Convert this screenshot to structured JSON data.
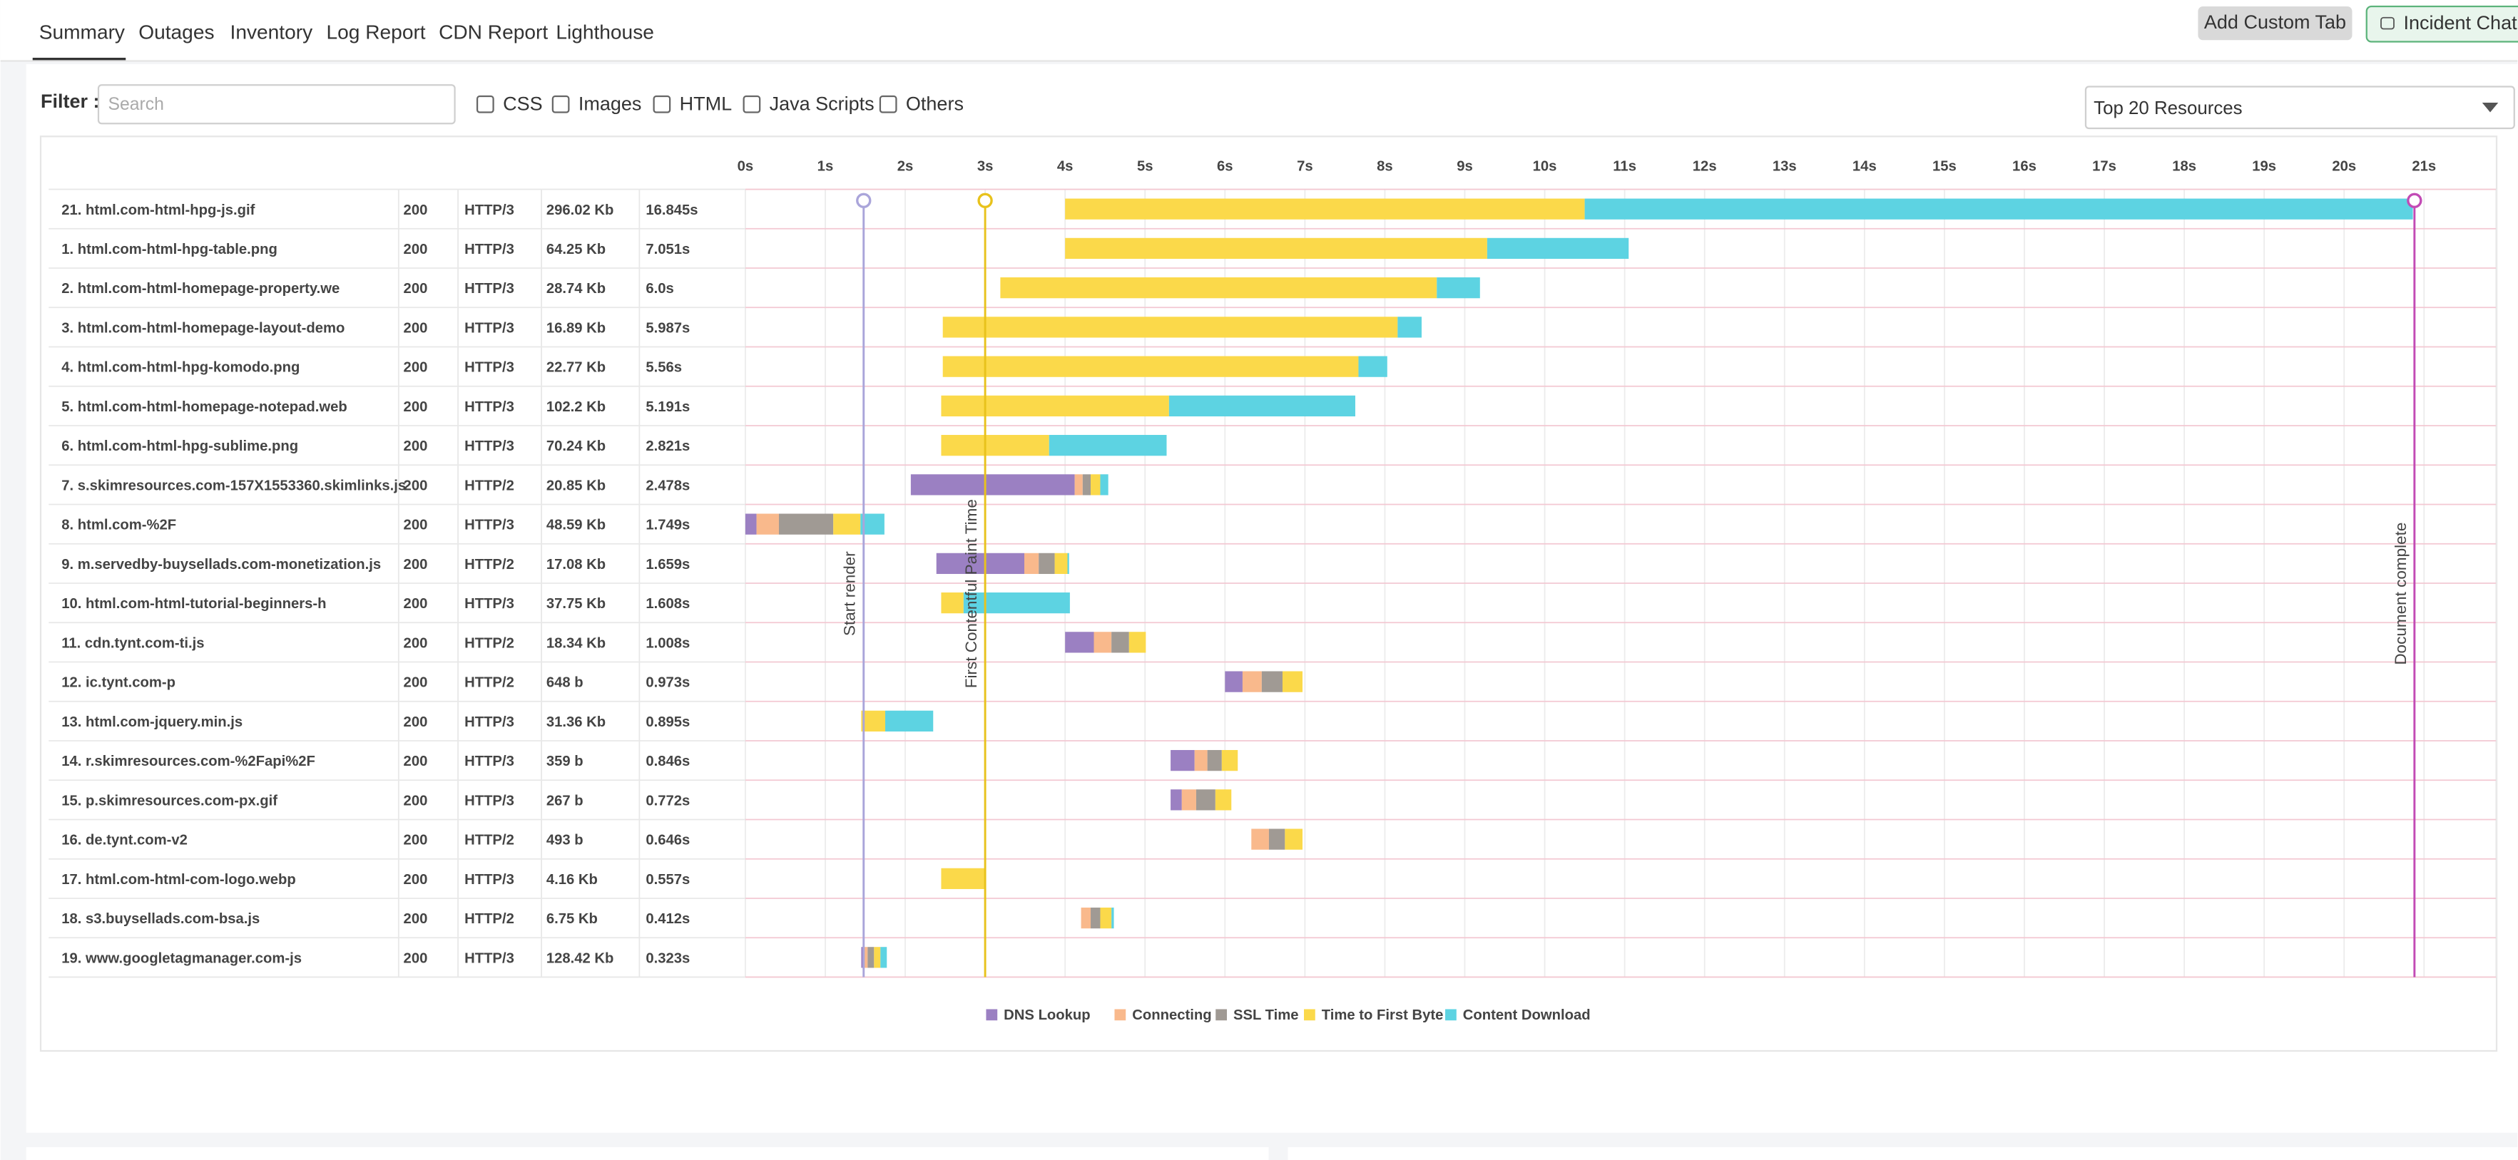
{
  "tabs": [
    "Summary",
    "Outages",
    "Inventory",
    "Log Report",
    "CDN Report",
    "Lighthouse"
  ],
  "buttons": [
    "Add Custom Tab",
    "Incident Chat"
  ],
  "filter": {
    "label": "Filter :",
    "placeholder": "Search",
    "options": [
      "CSS",
      "Images",
      "HTML",
      "Java Scripts",
      "Others"
    ],
    "dropdown": "Top 20 Resources"
  },
  "chart_data": {
    "type": "waterfall",
    "xlim": [
      0,
      21.9
    ],
    "xticks": [
      {
        "value": 0,
        "label": "0s"
      },
      {
        "value": 1,
        "label": "1s"
      },
      {
        "value": 2,
        "label": "2s"
      },
      {
        "value": 3,
        "label": "3s"
      },
      {
        "value": 4,
        "label": "4s"
      },
      {
        "value": 5,
        "label": "5s"
      },
      {
        "value": 6,
        "label": "6s"
      },
      {
        "value": 7,
        "label": "7s"
      },
      {
        "value": 8,
        "label": "8s"
      },
      {
        "value": 9,
        "label": "9s"
      },
      {
        "value": 10,
        "label": "10s"
      },
      {
        "value": 11,
        "label": "11s"
      },
      {
        "value": 12,
        "label": "12s"
      },
      {
        "value": 13,
        "label": "13s"
      },
      {
        "value": 14,
        "label": "14s"
      },
      {
        "value": 15,
        "label": "15s"
      },
      {
        "value": 16,
        "label": "16s"
      },
      {
        "value": 17,
        "label": "17s"
      },
      {
        "value": 18,
        "label": "18s"
      },
      {
        "value": 19,
        "label": "19s"
      },
      {
        "value": 20,
        "label": "20s"
      },
      {
        "value": 21,
        "label": "21s"
      }
    ],
    "grid": true,
    "rows": [
      {
        "name": "21. html.com-html-hpg-js.gif",
        "status": 200,
        "protocol": "HTTP/3",
        "size": "296.02 Kb",
        "time": "16.845s",
        "start": 4.0
      },
      {
        "name": "1. html.com-html-hpg-table.png",
        "status": 200,
        "protocol": "HTTP/3",
        "size": "64.25 Kb",
        "time": "7.051s",
        "start": 4.0
      },
      {
        "name": "2. html.com-html-homepage-property.we",
        "status": 200,
        "protocol": "HTTP/3",
        "size": "28.74 Kb",
        "time": "6.0s",
        "start": 3.19
      },
      {
        "name": "3. html.com-html-homepage-layout-demo",
        "status": 200,
        "protocol": "HTTP/3",
        "size": "16.89 Kb",
        "time": "5.987s",
        "start": 2.47
      },
      {
        "name": "4. html.com-html-hpg-komodo.png",
        "status": 200,
        "protocol": "HTTP/3",
        "size": "22.77 Kb",
        "time": "5.56s",
        "start": 2.47
      },
      {
        "name": "5. html.com-html-homepage-notepad.web",
        "status": 200,
        "protocol": "HTTP/3",
        "size": "102.2 Kb",
        "time": "5.191s",
        "start": 2.45
      },
      {
        "name": "6. html.com-html-hpg-sublime.png",
        "status": 200,
        "protocol": "HTTP/3",
        "size": "70.24 Kb",
        "time": "2.821s",
        "start": 2.45
      },
      {
        "name": "7. s.skimresources.com-157X1553360.skimlinks.js",
        "status": 200,
        "protocol": "HTTP/2",
        "size": "20.85 Kb",
        "time": "2.478s",
        "start": 2.07
      },
      {
        "name": "8. html.com-%2F",
        "status": 200,
        "protocol": "HTTP/3",
        "size": "48.59 Kb",
        "time": "1.749s",
        "start": 0.0
      },
      {
        "name": "9. m.servedby-buysellads.com-monetization.js",
        "status": 200,
        "protocol": "HTTP/2",
        "size": "17.08 Kb",
        "time": "1.659s",
        "start": 2.39
      },
      {
        "name": "10. html.com-html-tutorial-beginners-h",
        "status": 200,
        "protocol": "HTTP/3",
        "size": "37.75 Kb",
        "time": "1.608s",
        "start": 2.45
      },
      {
        "name": "11. cdn.tynt.com-ti.js",
        "status": 200,
        "protocol": "HTTP/2",
        "size": "18.34 Kb",
        "time": "1.008s",
        "start": 4.0
      },
      {
        "name": "12. ic.tynt.com-p",
        "status": 200,
        "protocol": "HTTP/2",
        "size": "648 b",
        "time": "0.973s",
        "start": 6.0
      },
      {
        "name": "13. html.com-jquery.min.js",
        "status": 200,
        "protocol": "HTTP/3",
        "size": "31.36 Kb",
        "time": "0.895s",
        "start": 1.45
      },
      {
        "name": "14. r.skimresources.com-%2Fapi%2F",
        "status": 200,
        "protocol": "HTTP/3",
        "size": "359 b",
        "time": "0.846s",
        "start": 5.32
      },
      {
        "name": "15. p.skimresources.com-px.gif",
        "status": 200,
        "protocol": "HTTP/3",
        "size": "267 b",
        "time": "0.772s",
        "start": 5.32
      },
      {
        "name": "16. de.tynt.com-v2",
        "status": 200,
        "protocol": "HTTP/2",
        "size": "493 b",
        "time": "0.646s",
        "start": 6.33
      },
      {
        "name": "17. html.com-html-com-logo.webp",
        "status": 200,
        "protocol": "HTTP/3",
        "size": "4.16 Kb",
        "time": "0.557s",
        "start": 2.45
      },
      {
        "name": "18. s3.buysellads.com-bsa.js",
        "status": 200,
        "protocol": "HTTP/2",
        "size": "6.75 Kb",
        "time": "0.412s",
        "start": 4.2
      },
      {
        "name": "19. www.googletagmanager.com-js",
        "status": 200,
        "protocol": "HTTP/3",
        "size": "128.42 Kb",
        "time": "0.323s",
        "start": 1.45
      }
    ],
    "series": [
      {
        "name": "DNS Lookup",
        "color": "#9b80c2",
        "values": [
          0,
          0,
          0,
          0,
          0,
          0,
          0,
          2.05,
          0.14,
          1.1,
          0,
          0.36,
          0.22,
          0,
          0.3,
          0.14,
          0,
          0,
          0,
          0.04
        ]
      },
      {
        "name": "Connecting",
        "color": "#f9b98c",
        "values": [
          0,
          0,
          0,
          0,
          0,
          0,
          0,
          0.1,
          0.28,
          0.18,
          0,
          0.22,
          0.24,
          0,
          0.16,
          0.18,
          0.22,
          0,
          0.12,
          0.04
        ]
      },
      {
        "name": "SSL Time",
        "color": "#a09a94",
        "values": [
          0,
          0,
          0,
          0,
          0,
          0,
          0,
          0.1,
          0.68,
          0.2,
          0,
          0.22,
          0.26,
          0,
          0.18,
          0.24,
          0.2,
          0,
          0.12,
          0.08
        ]
      },
      {
        "name": "Time to First Byte",
        "color": "#fbd94a",
        "values": [
          6.5,
          5.28,
          5.46,
          5.69,
          5.2,
          2.85,
          1.35,
          0.12,
          0.34,
          0.16,
          0.28,
          0.21,
          0.25,
          0.3,
          0.2,
          0.2,
          0.22,
          0.56,
          0.14,
          0.08
        ]
      },
      {
        "name": "Content Download",
        "color": "#5dd3e2",
        "values": [
          10.36,
          1.77,
          0.54,
          0.3,
          0.36,
          2.33,
          1.47,
          0.1,
          0.3,
          0.02,
          1.33,
          0,
          0,
          0.6,
          0,
          0,
          0,
          0,
          0.03,
          0.08
        ]
      }
    ],
    "markers": [
      {
        "label": "Start render",
        "value": 1.48,
        "color": "#aaa5da"
      },
      {
        "label": "First Contentful Paint Time",
        "value": 3.0,
        "color": "#e8c21c"
      },
      {
        "label": "Document complete",
        "value": 20.88,
        "color": "#c24bb5"
      }
    ]
  }
}
